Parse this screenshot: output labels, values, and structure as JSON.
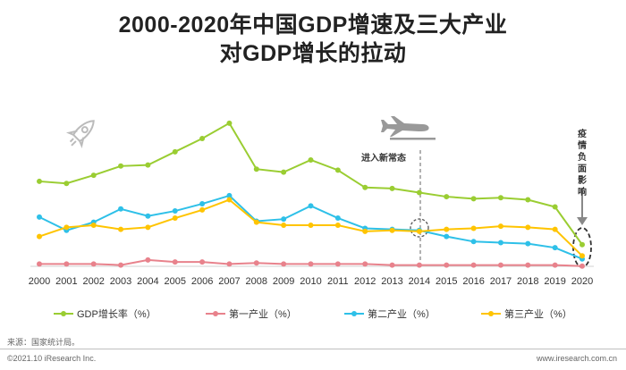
{
  "title_line1": "2000-2020年中国GDP增速及三大产业",
  "title_line2": "对GDP增长的拉动",
  "source": "来源：国家统计局。",
  "copyright": "©2021.10 iResearch Inc.",
  "website": "www.iresearch.com.cn",
  "annotations": {
    "new_normal": "进入新常态",
    "covid": "疫情负面影响"
  },
  "icons": [
    "rocket-icon",
    "airplane-landing-icon"
  ],
  "chart_data": {
    "type": "line",
    "x": [
      "2000",
      "2001",
      "2002",
      "2003",
      "2004",
      "2005",
      "2006",
      "2007",
      "2008",
      "2009",
      "2010",
      "2011",
      "2012",
      "2013",
      "2014",
      "2015",
      "2016",
      "2017",
      "2018",
      "2019",
      "2020"
    ],
    "series": [
      {
        "name": "GDP增长率（%）",
        "color": "#9acd32",
        "values": [
          8.5,
          8.3,
          9.1,
          10.0,
          10.1,
          11.4,
          12.7,
          14.2,
          9.7,
          9.4,
          10.6,
          9.6,
          7.9,
          7.8,
          7.4,
          7.0,
          6.8,
          6.9,
          6.7,
          6.0,
          2.3
        ]
      },
      {
        "name": "第一产业（%）",
        "color": "#e8828c",
        "values": [
          0.4,
          0.4,
          0.4,
          0.3,
          0.8,
          0.6,
          0.6,
          0.4,
          0.5,
          0.4,
          0.4,
          0.4,
          0.4,
          0.3,
          0.3,
          0.3,
          0.3,
          0.3,
          0.3,
          0.3,
          0.2
        ]
      },
      {
        "name": "第二产业（%）",
        "color": "#2ec0e8",
        "values": [
          5.0,
          3.7,
          4.5,
          5.8,
          5.1,
          5.6,
          6.3,
          7.1,
          4.6,
          4.8,
          6.1,
          4.9,
          3.9,
          3.8,
          3.7,
          3.1,
          2.6,
          2.5,
          2.4,
          2.0,
          0.9
        ]
      },
      {
        "name": "第三产业（%）",
        "color": "#ffc400",
        "values": [
          3.1,
          4.0,
          4.2,
          3.8,
          4.0,
          4.9,
          5.7,
          6.7,
          4.5,
          4.2,
          4.2,
          4.2,
          3.6,
          3.7,
          3.6,
          3.8,
          3.9,
          4.1,
          4.0,
          3.8,
          1.2
        ]
      }
    ],
    "ylim": [
      0,
      15.5
    ],
    "grid": false,
    "legend_position": "bottom",
    "title": "2000-2020年中国GDP增速及三大产业对GDP增长的拉动"
  }
}
